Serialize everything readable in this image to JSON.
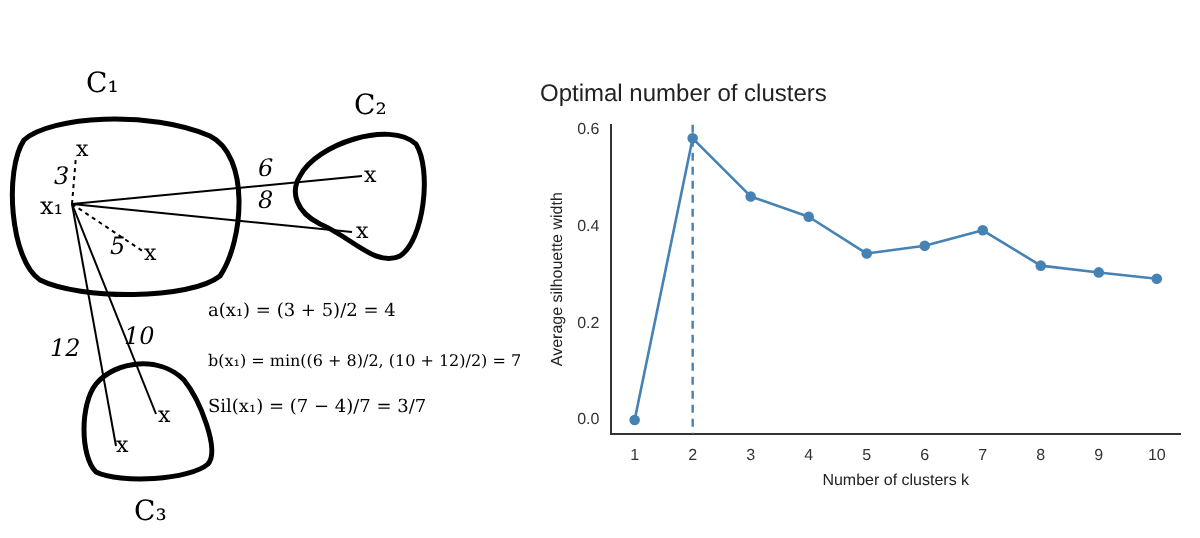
{
  "chart_data": {
    "type": "line",
    "title": "Optimal number of clusters",
    "xlabel": "Number of clusters k",
    "ylabel": "Average silhouette width",
    "x": [
      1,
      2,
      3,
      4,
      5,
      6,
      7,
      8,
      9,
      10
    ],
    "series": [
      {
        "color": "#4682b4",
        "values": [
          0,
          0.582,
          0.462,
          0.42,
          0.344,
          0.36,
          0.392,
          0.319,
          0.305,
          0.292
        ]
      }
    ],
    "xlim": [
      0.6,
      10.4
    ],
    "xticks": [
      1,
      2,
      3,
      4,
      5,
      6,
      7,
      8,
      9,
      10
    ],
    "ylim": [
      -0.028,
      0.61
    ],
    "yticks": [
      {
        "value": 0,
        "label": "0.0"
      },
      {
        "value": 0.2,
        "label": "0.2"
      },
      {
        "value": 0.4,
        "label": "0.4"
      },
      {
        "value": 0.6,
        "label": "0.6"
      }
    ],
    "ref_lines": [
      {
        "axis": "x",
        "value": 2,
        "color": "#4682b4",
        "line_style": "dashed"
      }
    ],
    "grid": false,
    "legend": false,
    "marker": "circle",
    "line_style": "solid",
    "annotations": [
      "C₁",
      "C₂",
      "C₃",
      "x₁",
      "x",
      "x",
      "x",
      "x",
      "x",
      "x",
      "3",
      "5",
      "6",
      "8",
      "10",
      "12",
      "a(x₁) = (3 + 5)/2 = 4",
      "b(x₁) = min((6 + 8)/2, (10 + 12)/2) = 7",
      "Sil(x₁) = (7 − 4)/7 = 3/7"
    ]
  }
}
